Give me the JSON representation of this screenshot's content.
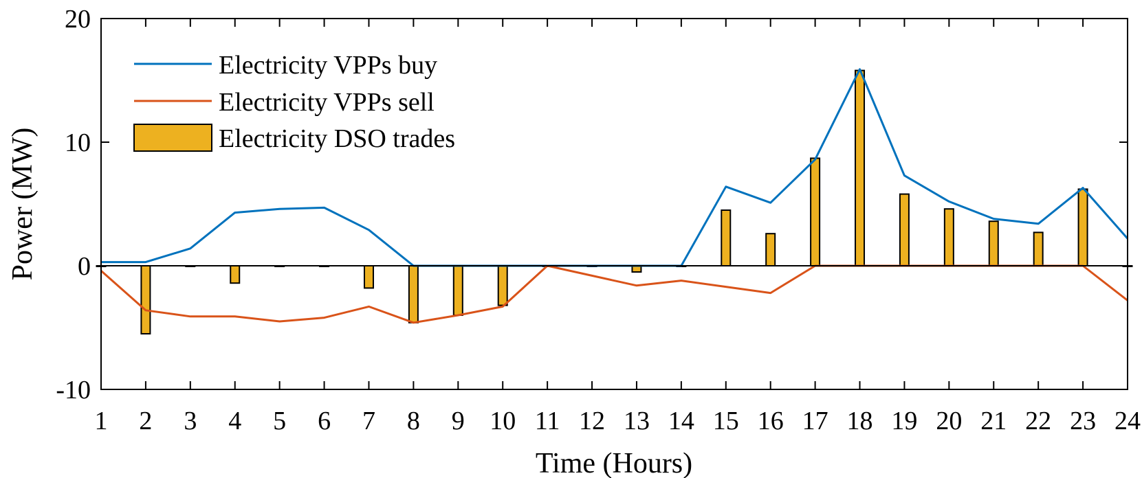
{
  "chart_data": {
    "type": "bar+line",
    "title": "",
    "xlabel": "Time (Hours)",
    "ylabel": "Power (MW)",
    "xlim": [
      1,
      24
    ],
    "ylim": [
      -10,
      20
    ],
    "x": [
      1,
      2,
      3,
      4,
      5,
      6,
      7,
      8,
      9,
      10,
      11,
      12,
      13,
      14,
      15,
      16,
      17,
      18,
      19,
      20,
      21,
      22,
      23,
      24
    ],
    "x_tick_labels": [
      "1",
      "2",
      "3",
      "4",
      "5",
      "6",
      "7",
      "8",
      "9",
      "10",
      "11",
      "12",
      "13",
      "14",
      "15",
      "16",
      "17",
      "18",
      "19",
      "20",
      "21",
      "22",
      "23",
      "24"
    ],
    "y_ticks": [
      -10,
      0,
      10,
      20
    ],
    "y_tick_labels": [
      "-10",
      "0",
      "10",
      "20"
    ],
    "grid": false,
    "legend_position": "top-left",
    "series": [
      {
        "name": "Electricity VPPs buy",
        "kind": "line",
        "color": "#0072BD",
        "values": [
          0.3,
          0.3,
          1.4,
          4.3,
          4.6,
          4.7,
          2.9,
          0,
          0,
          0,
          0,
          0,
          0,
          0,
          6.4,
          5.1,
          8.6,
          15.9,
          7.3,
          5.2,
          3.8,
          3.4,
          6.3,
          2.2
        ]
      },
      {
        "name": "Electricity VPPs sell",
        "kind": "line",
        "color": "#D95319",
        "values": [
          -0.4,
          -3.6,
          -4.1,
          -4.1,
          -4.5,
          -4.2,
          -3.3,
          -4.6,
          -4.0,
          -3.3,
          0,
          -0.8,
          -1.6,
          -1.2,
          -1.7,
          -2.2,
          0,
          0,
          0,
          0,
          0,
          0,
          0,
          -2.8
        ]
      },
      {
        "name": "Electricity DSO trades",
        "kind": "bar",
        "color": "#EDB120",
        "values": [
          0,
          -5.5,
          0,
          -1.4,
          0,
          0,
          -1.8,
          -4.6,
          -4.0,
          -3.2,
          0,
          0,
          -0.5,
          0,
          4.5,
          2.6,
          8.7,
          15.8,
          5.8,
          4.6,
          3.6,
          2.7,
          6.2,
          0
        ]
      }
    ]
  }
}
